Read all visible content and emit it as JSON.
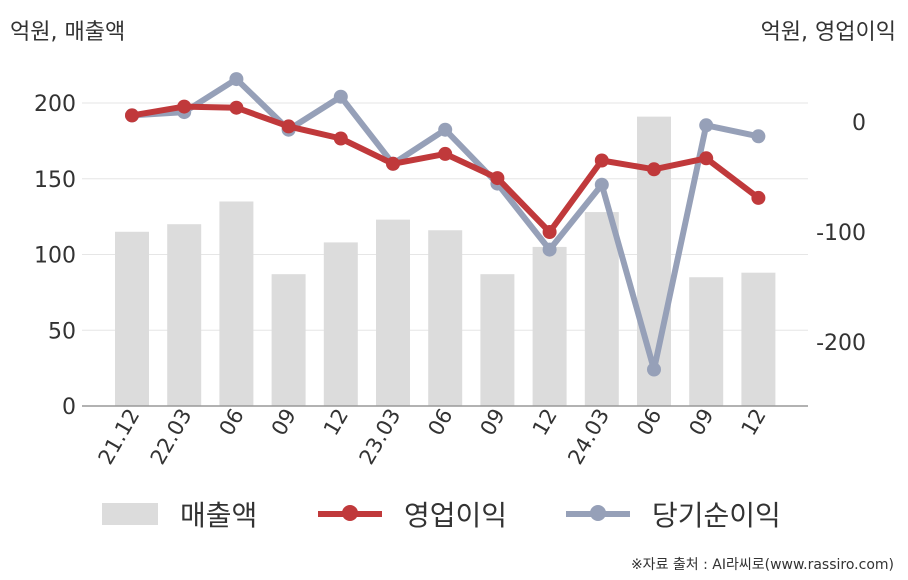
{
  "header": {
    "left_unit": "억원, 매출액",
    "right_unit": "억원, 영업이익"
  },
  "chart_data": {
    "type": "bar",
    "categories": [
      "21.12",
      "22.03",
      "06",
      "09",
      "12",
      "23.03",
      "06",
      "09",
      "12",
      "24.03",
      "06",
      "09",
      "12"
    ],
    "series": [
      {
        "name": "매출액",
        "type": "bar",
        "axis": "left",
        "color": "#dcdcdc",
        "values": [
          115,
          120,
          135,
          87,
          108,
          123,
          116,
          87,
          105,
          128,
          191,
          85,
          88
        ]
      },
      {
        "name": "영업이익",
        "type": "line",
        "axis": "right",
        "color": "#c0393b",
        "values": [
          6,
          14,
          13,
          -4,
          -15,
          -38,
          -29,
          -51,
          -100,
          -35,
          -43,
          -33,
          -69
        ]
      },
      {
        "name": "당기순이익",
        "type": "line",
        "axis": "right",
        "color": "#96a0b8",
        "values": [
          6,
          9,
          39,
          -7,
          23,
          -38,
          -7,
          -56,
          -116,
          -57,
          -225,
          -3,
          -13
        ]
      }
    ],
    "y_left": {
      "min": 0,
      "max": 200,
      "ticks": [
        0,
        50,
        100,
        150,
        200
      ]
    },
    "y_right": {
      "min": -260,
      "max": 26,
      "ticks": [
        0,
        -100,
        -200
      ]
    },
    "grid": true,
    "legend_position": "bottom"
  },
  "legend": [
    {
      "label": "매출액",
      "kind": "bar",
      "color": "#dcdcdc"
    },
    {
      "label": "영업이익",
      "kind": "line",
      "color": "#c0393b"
    },
    {
      "label": "당기순이익",
      "kind": "line",
      "color": "#96a0b8"
    }
  ],
  "footer": {
    "source": "※자료 출처 : AI라씨로(www.rassiro.com)"
  }
}
